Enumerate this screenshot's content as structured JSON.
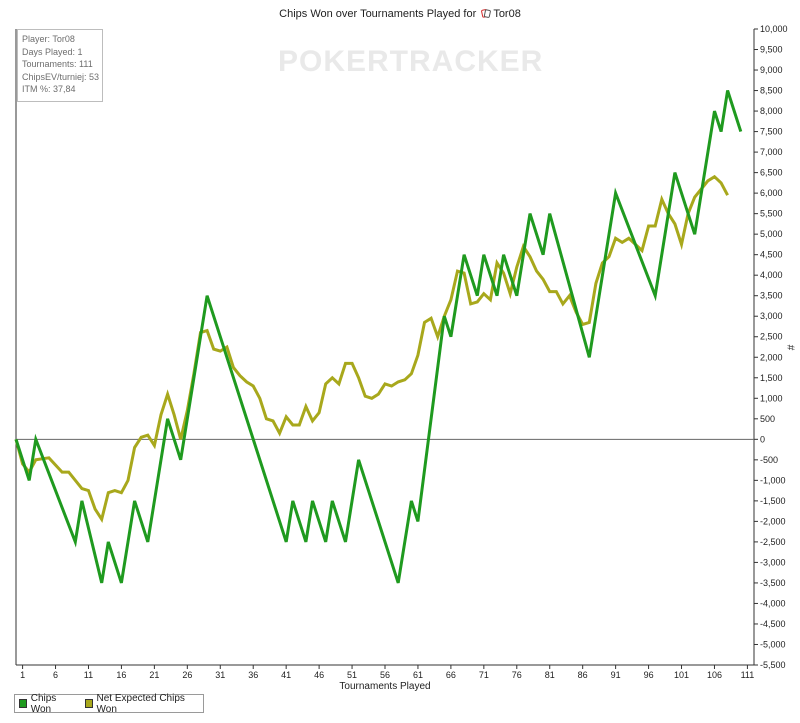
{
  "chart_data": {
    "type": "line",
    "title_prefix": "Chips Won over Tournaments Played for",
    "title_player": "Tor08",
    "xlabel": "Tournaments Played",
    "ylabel": "#",
    "xlim": [
      0,
      112
    ],
    "ylim": [
      -5500,
      10000
    ],
    "x_ticks": [
      1,
      6,
      11,
      16,
      21,
      26,
      31,
      36,
      41,
      46,
      51,
      56,
      61,
      66,
      71,
      76,
      81,
      86,
      91,
      96,
      101,
      106,
      111
    ],
    "y_ticks": [
      -5500,
      -5000,
      -4500,
      -4000,
      -3500,
      -3000,
      -2500,
      -2000,
      -1500,
      -1000,
      -500,
      0,
      500,
      1000,
      1500,
      2000,
      2500,
      3000,
      3500,
      4000,
      4500,
      5000,
      5500,
      6000,
      6500,
      7000,
      7500,
      8000,
      8500,
      9000,
      9500,
      10000
    ],
    "y_tick_labels": [
      "-5,500",
      "-5,000",
      "-4,500",
      "-4,000",
      "-3,500",
      "-3,000",
      "-2,500",
      "-2,000",
      "-1,500",
      "-1,000",
      "-500",
      "0",
      "500",
      "1,000",
      "1,500",
      "2,000",
      "2,500",
      "3,000",
      "3,500",
      "4,000",
      "4,500",
      "5,000",
      "5,500",
      "6,000",
      "6,500",
      "7,000",
      "7,500",
      "8,000",
      "8,500",
      "9,000",
      "9,500",
      "10,000"
    ],
    "grid": false,
    "legend_position": "bottom-left",
    "series": [
      {
        "name": "Chips Won",
        "color": "#1f9a1f",
        "points": [
          [
            0,
            0
          ],
          [
            2,
            -1000
          ],
          [
            3,
            0
          ],
          [
            9,
            -2500
          ],
          [
            10,
            -1500
          ],
          [
            13,
            -3500
          ],
          [
            14,
            -2500
          ],
          [
            16,
            -3500
          ],
          [
            18,
            -1500
          ],
          [
            20,
            -2500
          ],
          [
            23,
            500
          ],
          [
            25,
            -500
          ],
          [
            29,
            3500
          ],
          [
            41,
            -2500
          ],
          [
            42,
            -1500
          ],
          [
            44,
            -2500
          ],
          [
            45,
            -1500
          ],
          [
            47,
            -2500
          ],
          [
            48,
            -1500
          ],
          [
            50,
            -2500
          ],
          [
            52,
            -500
          ],
          [
            58,
            -3500
          ],
          [
            60,
            -1500
          ],
          [
            61,
            -2000
          ],
          [
            65,
            3000
          ],
          [
            66,
            2500
          ],
          [
            68,
            4500
          ],
          [
            70,
            3500
          ],
          [
            71,
            4500
          ],
          [
            73,
            3500
          ],
          [
            74,
            4500
          ],
          [
            76,
            3500
          ],
          [
            78,
            5500
          ],
          [
            80,
            4500
          ],
          [
            81,
            5500
          ],
          [
            87,
            2000
          ],
          [
            91,
            6000
          ],
          [
            97,
            3500
          ],
          [
            100,
            6500
          ],
          [
            103,
            5000
          ],
          [
            106,
            8000
          ],
          [
            107,
            7500
          ],
          [
            108,
            8500
          ],
          [
            110,
            7500
          ]
        ]
      },
      {
        "name": "Net Expected Chips Won",
        "color": "#a8a81c",
        "points": [
          [
            0,
            0
          ],
          [
            1,
            -600
          ],
          [
            2,
            -800
          ],
          [
            3,
            -500
          ],
          [
            5,
            -450
          ],
          [
            7,
            -800
          ],
          [
            8,
            -800
          ],
          [
            10,
            -1200
          ],
          [
            11,
            -1250
          ],
          [
            12,
            -1700
          ],
          [
            13,
            -1950
          ],
          [
            14,
            -1300
          ],
          [
            15,
            -1250
          ],
          [
            16,
            -1300
          ],
          [
            17,
            -1000
          ],
          [
            18,
            -200
          ],
          [
            19,
            50
          ],
          [
            20,
            100
          ],
          [
            21,
            -150
          ],
          [
            22,
            600
          ],
          [
            23,
            1100
          ],
          [
            24,
            600
          ],
          [
            25,
            0
          ],
          [
            26,
            700
          ],
          [
            27,
            1600
          ],
          [
            28,
            2600
          ],
          [
            29,
            2650
          ],
          [
            30,
            2200
          ],
          [
            31,
            2150
          ],
          [
            32,
            2250
          ],
          [
            33,
            1750
          ],
          [
            34,
            1550
          ],
          [
            35,
            1400
          ],
          [
            36,
            1300
          ],
          [
            37,
            1000
          ],
          [
            38,
            500
          ],
          [
            39,
            450
          ],
          [
            40,
            150
          ],
          [
            41,
            550
          ],
          [
            42,
            350
          ],
          [
            43,
            350
          ],
          [
            44,
            800
          ],
          [
            45,
            450
          ],
          [
            46,
            650
          ],
          [
            47,
            1350
          ],
          [
            48,
            1500
          ],
          [
            49,
            1350
          ],
          [
            50,
            1850
          ],
          [
            51,
            1850
          ],
          [
            52,
            1500
          ],
          [
            53,
            1050
          ],
          [
            54,
            1000
          ],
          [
            55,
            1100
          ],
          [
            56,
            1350
          ],
          [
            57,
            1300
          ],
          [
            58,
            1400
          ],
          [
            59,
            1450
          ],
          [
            60,
            1600
          ],
          [
            61,
            2050
          ],
          [
            62,
            2850
          ],
          [
            63,
            2950
          ],
          [
            64,
            2500
          ],
          [
            65,
            3000
          ],
          [
            66,
            3400
          ],
          [
            67,
            4100
          ],
          [
            68,
            4050
          ],
          [
            69,
            3300
          ],
          [
            70,
            3350
          ],
          [
            71,
            3550
          ],
          [
            72,
            3400
          ],
          [
            73,
            4300
          ],
          [
            74,
            4050
          ],
          [
            75,
            3550
          ],
          [
            76,
            4200
          ],
          [
            77,
            4700
          ],
          [
            78,
            4450
          ],
          [
            79,
            4100
          ],
          [
            80,
            3900
          ],
          [
            81,
            3600
          ],
          [
            82,
            3600
          ],
          [
            83,
            3300
          ],
          [
            84,
            3500
          ],
          [
            85,
            3100
          ],
          [
            86,
            2800
          ],
          [
            87,
            2850
          ],
          [
            88,
            3800
          ],
          [
            89,
            4300
          ],
          [
            90,
            4450
          ],
          [
            91,
            4900
          ],
          [
            92,
            4800
          ],
          [
            93,
            4900
          ],
          [
            94,
            4750
          ],
          [
            95,
            4600
          ],
          [
            96,
            5200
          ],
          [
            97,
            5200
          ],
          [
            98,
            5850
          ],
          [
            99,
            5500
          ],
          [
            100,
            5250
          ],
          [
            101,
            4750
          ],
          [
            102,
            5500
          ],
          [
            103,
            5900
          ],
          [
            104,
            6100
          ],
          [
            105,
            6300
          ],
          [
            106,
            6400
          ],
          [
            107,
            6250
          ],
          [
            108,
            5950
          ]
        ]
      }
    ]
  },
  "stats": {
    "player": "Player: Tor08",
    "days": "Days Played: 1",
    "tournaments": "Tournaments: 111",
    "chipsev": "ChipsEV/turniej: 53",
    "itm": "ITM %: 37,84"
  },
  "watermark": "POKERTRACKER",
  "colors": {
    "axis": "#333333",
    "zero_line": "#666666",
    "icon_red": "#d42a2a"
  },
  "icon": "playing-cards-icon"
}
